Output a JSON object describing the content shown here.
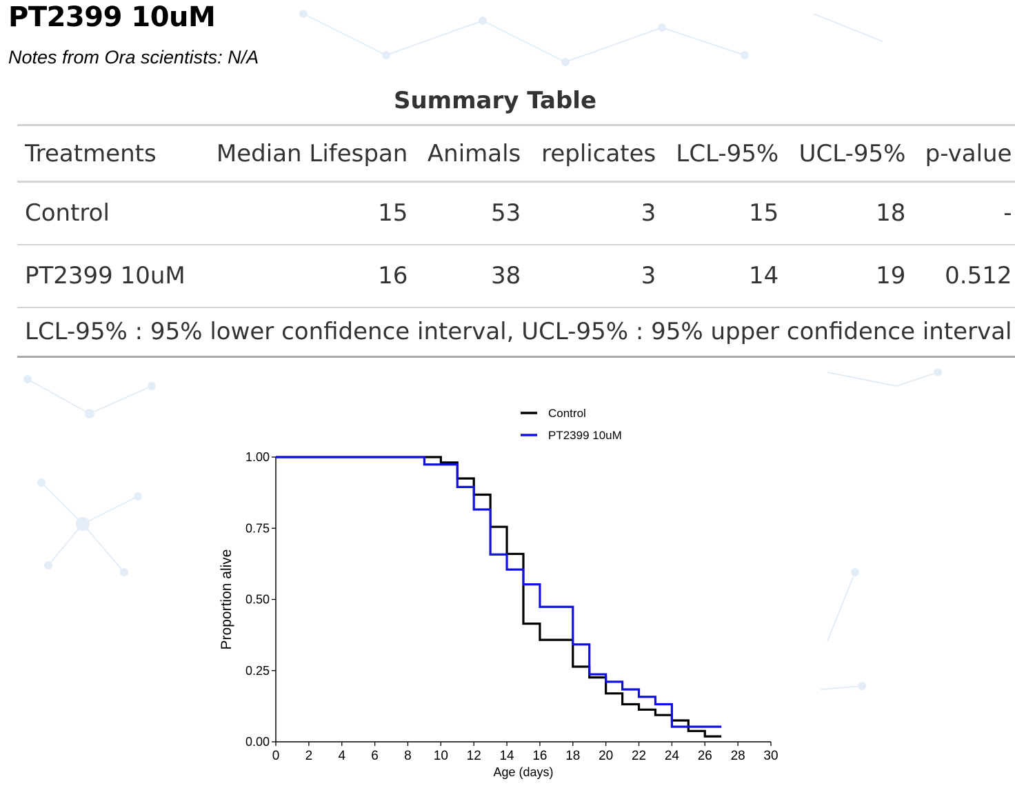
{
  "header": {
    "title": "PT2399 10uM",
    "notes": "Notes from Ora scientists: N/A"
  },
  "summary_table": {
    "title": "Summary Table",
    "columns": [
      "Treatments",
      "Median Lifespan",
      "Animals",
      "replicates",
      "LCL-95%",
      "UCL-95%",
      "p-value"
    ],
    "rows": [
      {
        "treatment": "Control",
        "median": "15",
        "animals": "53",
        "replicates": "3",
        "lcl": "15",
        "ucl": "18",
        "p": "-"
      },
      {
        "treatment": "PT2399 10uM",
        "median": "16",
        "animals": "38",
        "replicates": "3",
        "lcl": "14",
        "ucl": "19",
        "p": "0.512"
      }
    ],
    "footnote": "LCL-95% : 95% lower confidence interval, UCL-95% : 95% upper confidence interval"
  },
  "chart_data": {
    "type": "line",
    "step": true,
    "xlabel": "Age (days)",
    "ylabel": "Proportion alive",
    "xlim": [
      0,
      30
    ],
    "ylim": [
      0,
      1
    ],
    "xticks": [
      0,
      2,
      4,
      6,
      8,
      10,
      12,
      14,
      16,
      18,
      20,
      22,
      24,
      26,
      28,
      30
    ],
    "yticks": [
      0,
      0.25,
      0.5,
      0.75,
      1.0
    ],
    "ytick_labels": [
      "0.00",
      "0.25",
      "0.50",
      "0.75",
      "1.00"
    ],
    "grid": false,
    "legend_position": "top",
    "series": [
      {
        "name": "Control",
        "color": "#000000",
        "x": [
          0,
          10,
          11,
          12,
          13,
          14,
          15,
          16,
          18,
          19,
          20,
          21,
          22,
          23,
          24,
          25,
          26,
          27
        ],
        "y": [
          1.0,
          0.981,
          0.925,
          0.868,
          0.755,
          0.66,
          0.415,
          0.358,
          0.264,
          0.226,
          0.17,
          0.132,
          0.113,
          0.094,
          0.075,
          0.038,
          0.019,
          0.019
        ]
      },
      {
        "name": "PT2399 10uM",
        "color": "#1010e0",
        "x": [
          0,
          9,
          11,
          12,
          13,
          14,
          15,
          16,
          18,
          19,
          20,
          21,
          22,
          23,
          24,
          26,
          27
        ],
        "y": [
          1.0,
          0.974,
          0.895,
          0.816,
          0.658,
          0.605,
          0.553,
          0.474,
          0.342,
          0.237,
          0.211,
          0.184,
          0.158,
          0.132,
          0.053,
          0.053,
          0.053
        ]
      }
    ]
  },
  "colors": {
    "table_text": "#333333",
    "rule": "#d3d3d3",
    "bottom_rule": "#a8a8a8",
    "background_network": "#dbe8f5"
  }
}
